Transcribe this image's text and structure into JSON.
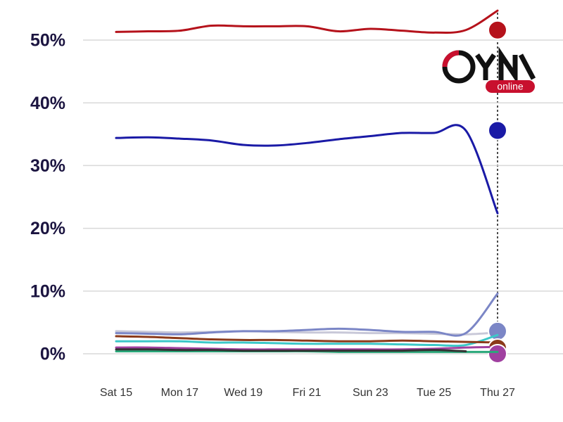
{
  "chart_data": {
    "type": "line",
    "categories": [
      "Sat 15",
      null,
      "Mon 17",
      null,
      "Wed 19",
      null,
      "Fri 21",
      null,
      "Sun 23",
      null,
      "Tue 25",
      null,
      "Thu 27"
    ],
    "series": [
      {
        "color": "#b5121b",
        "values": [
          51.3,
          51.4,
          51.5,
          52.3,
          52.2,
          52.2,
          52.2,
          51.4,
          51.8,
          51.5,
          51.2,
          51.6,
          54.7
        ],
        "marker": 51.6
      },
      {
        "color": "#1a1aa6",
        "values": [
          34.4,
          34.5,
          34.3,
          34.0,
          33.3,
          33.2,
          33.6,
          34.2,
          34.7,
          35.2,
          35.2,
          35.6,
          22.4
        ],
        "marker": 35.6
      },
      {
        "color": "#c8c8d8",
        "values": [
          3.6,
          3.5,
          3.4,
          3.5,
          3.6,
          3.5,
          3.4,
          3.4,
          3.3,
          3.3,
          3.2,
          3.1,
          3.4
        ]
      },
      {
        "color": "#7b86c6",
        "values": [
          3.3,
          3.2,
          3.1,
          3.4,
          3.6,
          3.6,
          3.8,
          4.0,
          3.8,
          3.5,
          3.5,
          3.3,
          9.6
        ],
        "marker": 3.6
      },
      {
        "color": "#3cc8c8",
        "values": [
          2.0,
          2.0,
          2.0,
          1.8,
          1.8,
          1.7,
          1.6,
          1.6,
          1.6,
          1.5,
          1.4,
          1.4,
          3.0
        ]
      },
      {
        "color": "#8b3a1a",
        "values": [
          2.8,
          2.7,
          2.5,
          2.3,
          2.2,
          2.2,
          2.1,
          2.0,
          2.0,
          2.1,
          2.0,
          1.9,
          1.8
        ],
        "marker": 0.9
      },
      {
        "color": "#a040a0",
        "values": [
          1.0,
          1.0,
          0.9,
          0.8,
          0.7,
          0.7,
          0.7,
          0.7,
          0.7,
          0.7,
          0.8,
          1.0,
          1.1
        ],
        "marker": 0
      },
      {
        "color": "#2aa87a",
        "values": [
          0.4,
          0.4,
          0.4,
          0.4,
          0.4,
          0.4,
          0.4,
          0.3,
          0.3,
          0.3,
          0.3,
          0.3,
          0.3
        ]
      },
      {
        "color": "#333333",
        "values": [
          0.7,
          0.7,
          0.6,
          0.6,
          0.5,
          0.5,
          0.5,
          0.5,
          0.5,
          0.5,
          0.6,
          0.4,
          null
        ]
      }
    ],
    "ylim": [
      -3,
      56
    ],
    "yticks": [
      {
        "value": 0,
        "label": "0%"
      },
      {
        "value": 10,
        "label": "10%"
      },
      {
        "value": 20,
        "label": "20%"
      },
      {
        "value": 30,
        "label": "30%"
      },
      {
        "value": 40,
        "label": "40%"
      },
      {
        "value": 50,
        "label": "50%"
      }
    ],
    "grid": true,
    "logo": "online"
  }
}
